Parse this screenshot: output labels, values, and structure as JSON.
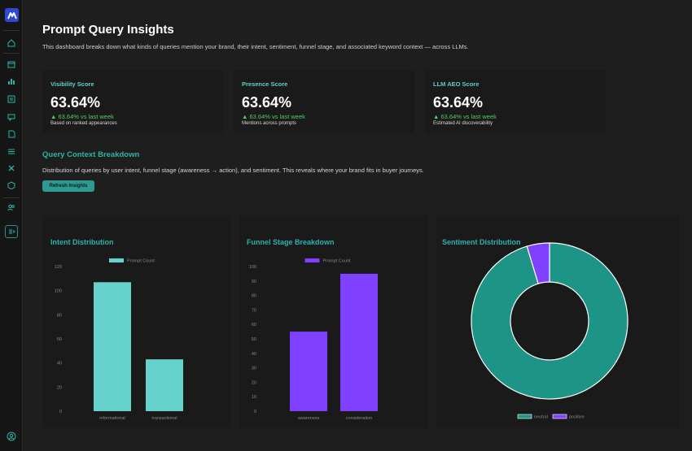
{
  "sidebar": {
    "logo_icon": "brand-logo-icon",
    "items": [
      {
        "name": "home-icon"
      },
      {
        "name": "calendar-icon"
      },
      {
        "name": "bar-chart-icon"
      },
      {
        "name": "report-icon"
      },
      {
        "name": "chat-icon"
      },
      {
        "name": "document-icon"
      },
      {
        "name": "list-icon"
      },
      {
        "name": "tools-icon"
      },
      {
        "name": "shield-icon"
      },
      {
        "name": "users-icon"
      },
      {
        "name": "collapse-icon"
      }
    ],
    "footer_icon": "user-avatar-icon"
  },
  "header": {
    "title": "Prompt Query Insights",
    "subtitle": "This dashboard breaks down what kinds of queries mention your brand, their intent, sentiment, funnel stage, and associated keyword context — across LLMs."
  },
  "metrics": [
    {
      "label": "Visibility Score",
      "value": "63.64%",
      "change": "▲ 63.64% vs last week",
      "note": "Based on ranked appearances"
    },
    {
      "label": "Presence Score",
      "value": "63.64%",
      "change": "▲ 63.64% vs last week",
      "note": "Mentions across prompts"
    },
    {
      "label": "LLM AEO Score",
      "value": "63.64%",
      "change": "▲ 63.64% vs last week",
      "note": "Estimated AI discoverability"
    }
  ],
  "context": {
    "title": "Query Context Breakdown",
    "description": "Distribution of queries by user intent, funnel stage (awareness → action), and sentiment. This reveals where your brand fits in buyer journeys.",
    "refresh_label": "Refresh Insights"
  },
  "colors": {
    "accent": "#2bb3a8",
    "teal_bar": "#66d2cc",
    "purple": "#8040ff",
    "donut_teal": "#1d9486",
    "up_green": "#4dcc6a"
  },
  "charts": {
    "intent": {
      "title": "Intent Distribution"
    },
    "funnel": {
      "title": "Funnel Stage Breakdown"
    },
    "sentiment": {
      "title": "Sentiment Distribution"
    }
  },
  "chart_data": [
    {
      "type": "bar",
      "title": "Intent Distribution",
      "categories": [
        "informational",
        "transactional"
      ],
      "series": [
        {
          "name": "Prompt Count",
          "values": [
            107,
            43
          ]
        }
      ],
      "ylim": [
        0,
        120
      ],
      "yticks": [
        0,
        20,
        40,
        60,
        80,
        100,
        120
      ],
      "legend": "top"
    },
    {
      "type": "bar",
      "title": "Funnel Stage Breakdown",
      "categories": [
        "awareness",
        "consideration"
      ],
      "series": [
        {
          "name": "Prompt Count",
          "values": [
            55,
            95
          ]
        }
      ],
      "ylim": [
        0,
        100
      ],
      "yticks": [
        0,
        10,
        20,
        30,
        40,
        50,
        60,
        70,
        80,
        90,
        100
      ],
      "legend": "top"
    },
    {
      "type": "pie",
      "title": "Sentiment Distribution",
      "categories": [
        "neutral",
        "positive"
      ],
      "values": [
        143,
        7
      ],
      "legend": "bottom"
    }
  ]
}
